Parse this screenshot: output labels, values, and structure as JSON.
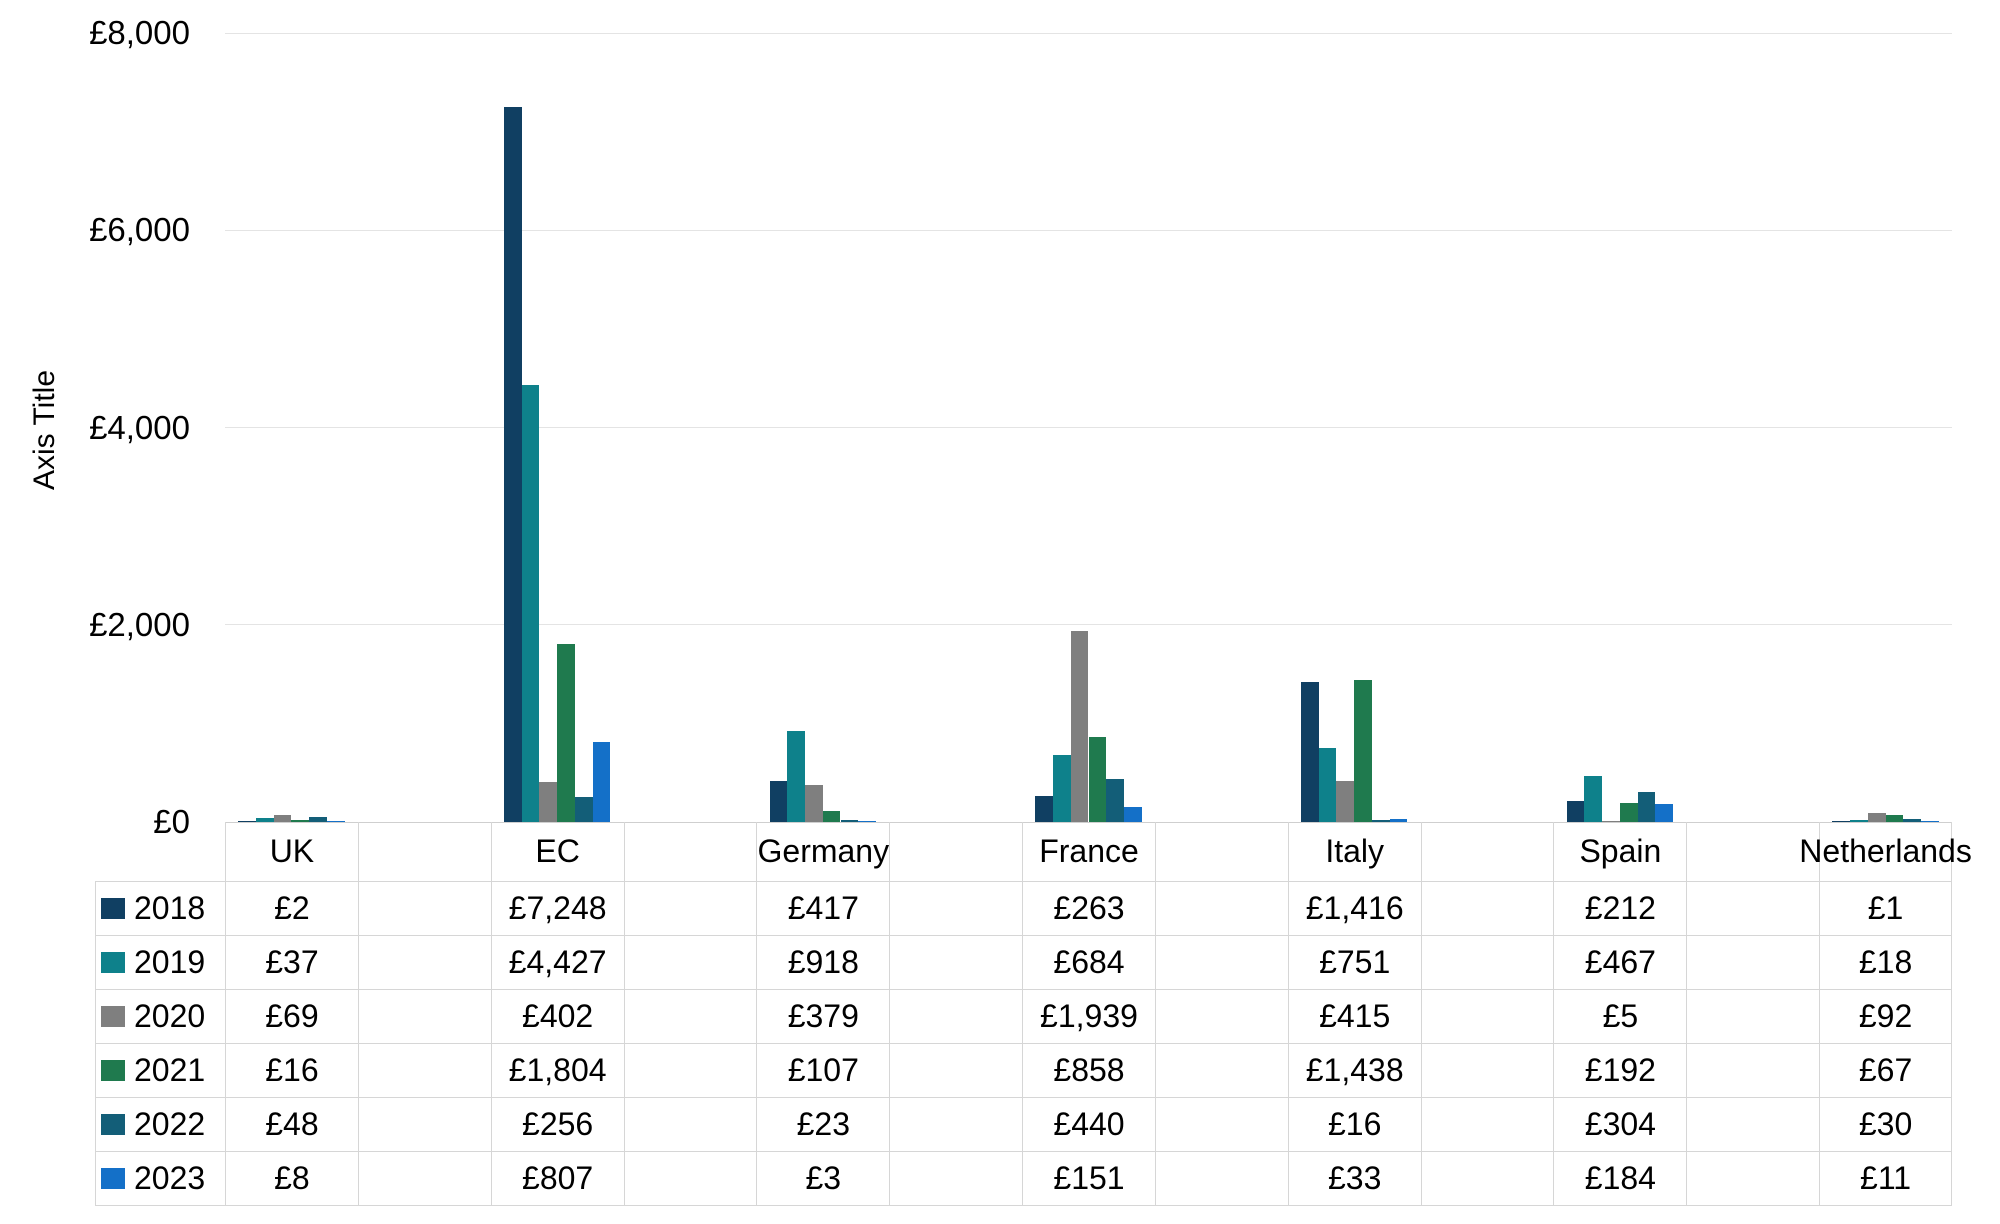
{
  "chart_data": {
    "type": "bar",
    "title": "",
    "xlabel": "",
    "ylabel": "Axis Title",
    "ylim": [
      0,
      8000
    ],
    "grid": true,
    "legend_position": "data-table-left",
    "currency_prefix": "£",
    "yticks": [
      {
        "value": 0,
        "label": "£0"
      },
      {
        "value": 2000,
        "label": "£2,000"
      },
      {
        "value": 4000,
        "label": "£4,000"
      },
      {
        "value": 6000,
        "label": "£6,000"
      },
      {
        "value": 8000,
        "label": "£8,000"
      }
    ],
    "categories": [
      "UK",
      "EC",
      "Germany",
      "France",
      "Italy",
      "Spain",
      "Netherlands"
    ],
    "series": [
      {
        "name": "2018",
        "color": "#103f62",
        "values": [
          2,
          7248,
          417,
          263,
          1416,
          212,
          1
        ],
        "labels": [
          "£2",
          "£7,248",
          "£417",
          "£263",
          "£1,416",
          "£212",
          "£1"
        ]
      },
      {
        "name": "2019",
        "color": "#0e818b",
        "values": [
          37,
          4427,
          918,
          684,
          751,
          467,
          18
        ],
        "labels": [
          "£37",
          "£4,427",
          "£918",
          "£684",
          "£751",
          "£467",
          "£18"
        ]
      },
      {
        "name": "2020",
        "color": "#7f7f7f",
        "values": [
          69,
          402,
          379,
          1939,
          415,
          5,
          92
        ],
        "labels": [
          "£69",
          "£402",
          "£379",
          "£1,939",
          "£415",
          "£5",
          "£92"
        ]
      },
      {
        "name": "2021",
        "color": "#1f7a4e",
        "values": [
          16,
          1804,
          107,
          858,
          1438,
          192,
          67
        ],
        "labels": [
          "£16",
          "£1,804",
          "£107",
          "£858",
          "£1,438",
          "£192",
          "£67"
        ]
      },
      {
        "name": "2022",
        "color": "#135e78",
        "values": [
          48,
          256,
          23,
          440,
          16,
          304,
          30
        ],
        "labels": [
          "£48",
          "£256",
          "£23",
          "£440",
          "£16",
          "£304",
          "£30"
        ]
      },
      {
        "name": "2023",
        "color": "#1470c8",
        "values": [
          8,
          807,
          3,
          151,
          33,
          184,
          11
        ],
        "labels": [
          "£8",
          "£807",
          "£3",
          "£151",
          "£33",
          "£184",
          "£11"
        ]
      }
    ]
  }
}
